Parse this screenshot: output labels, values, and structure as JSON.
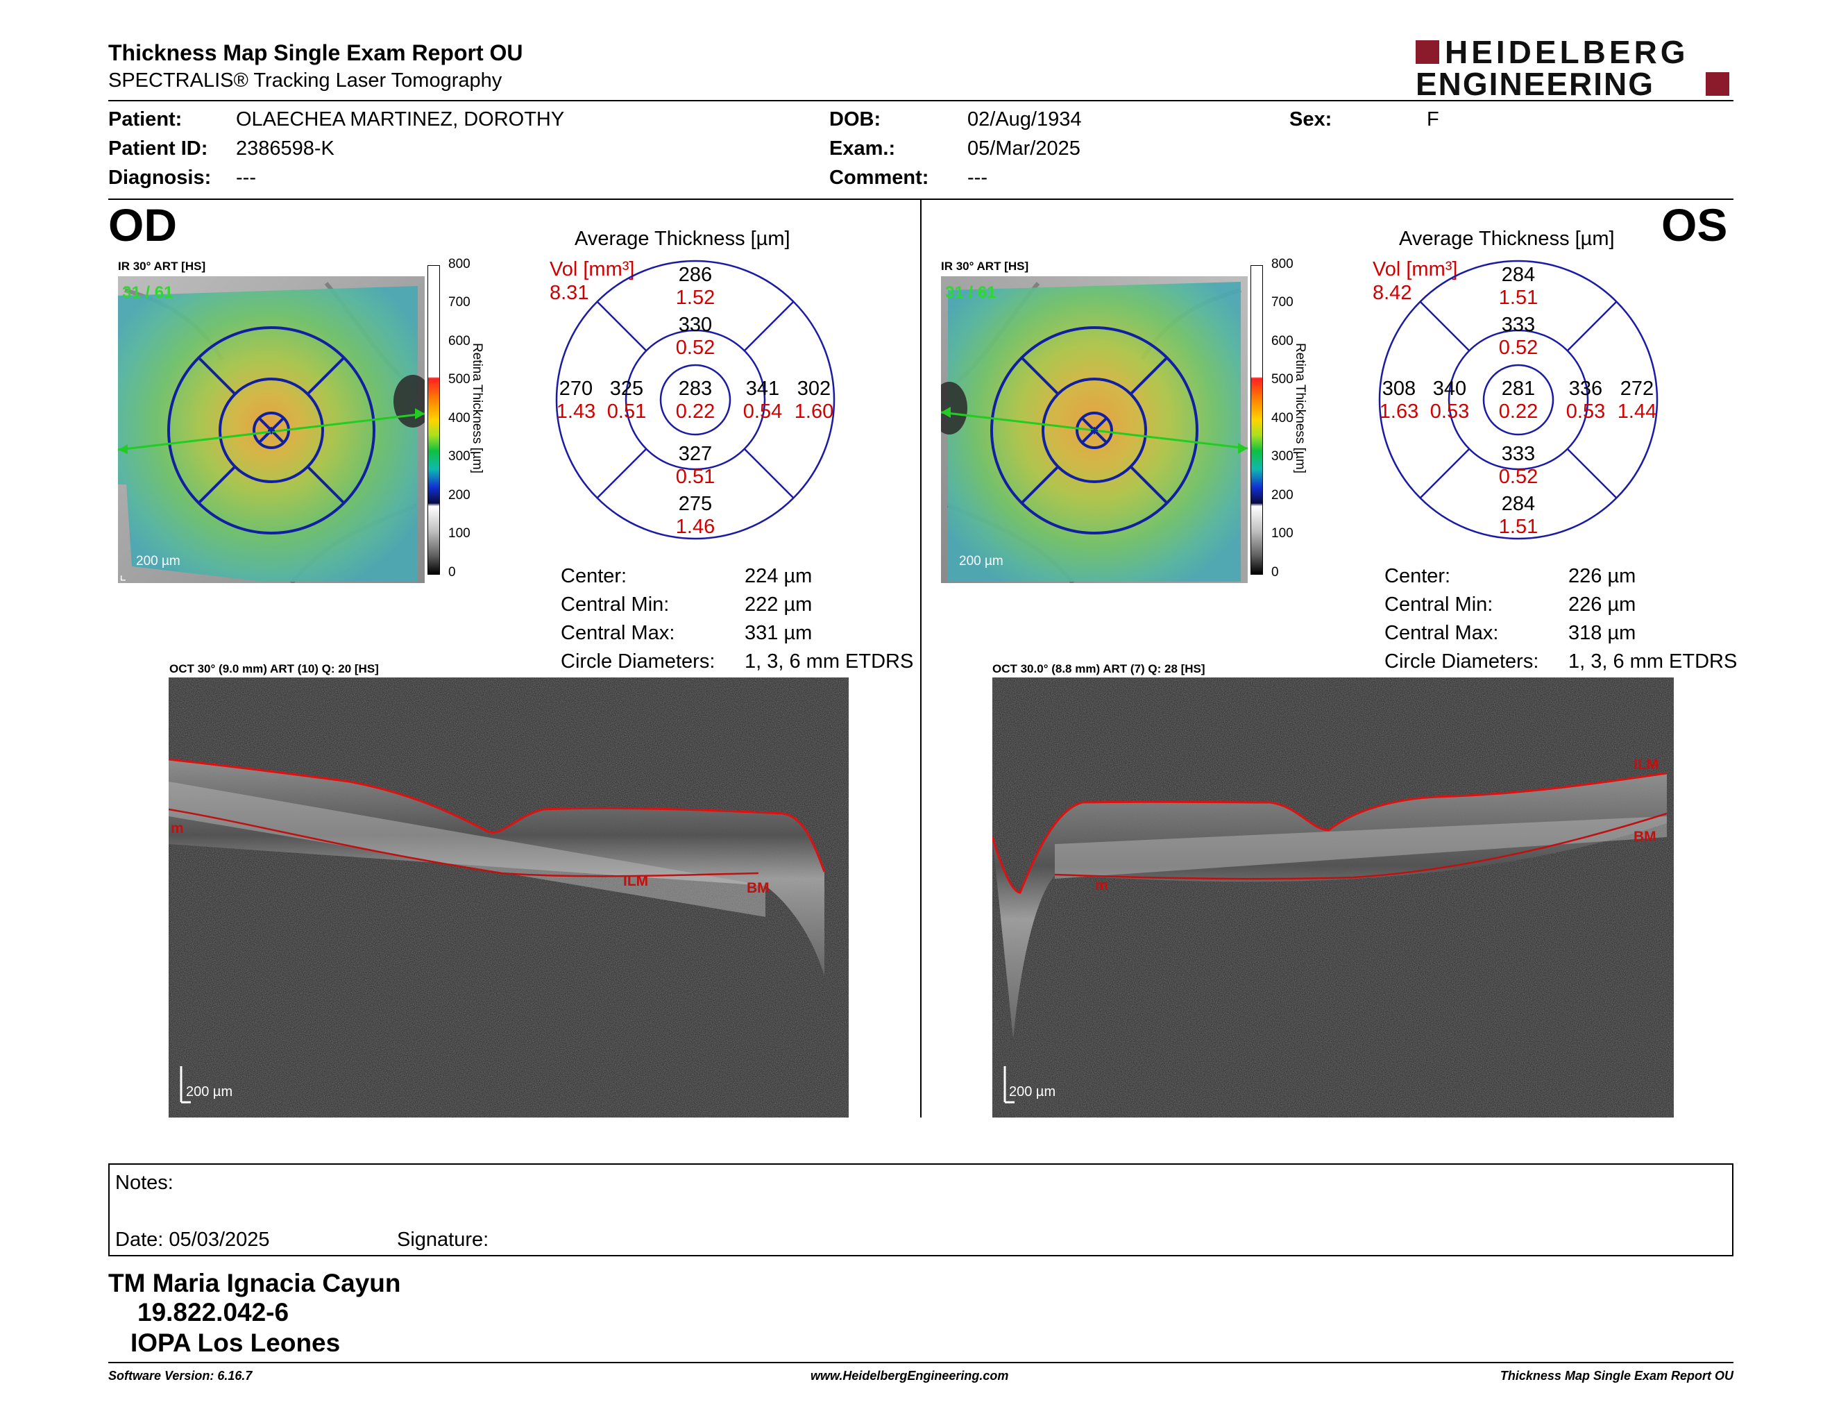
{
  "report": {
    "title": "Thickness Map Single Exam Report OU",
    "subtitle": "SPECTRALIS® Tracking Laser Tomography",
    "logo_line1": "HEIDELBERG",
    "logo_line2": "ENGINEERING",
    "brand_color": "#8b1a2b"
  },
  "patient": {
    "patient_label": "Patient:",
    "patient_value": "OLAECHEA MARTINEZ, DOROTHY",
    "id_label": "Patient ID:",
    "id_value": "2386598-K",
    "diag_label": "Diagnosis:",
    "diag_value": "---",
    "dob_label": "DOB:",
    "dob_value": "02/Aug/1934",
    "exam_label": "Exam.:",
    "exam_value": "05/Mar/2025",
    "comment_label": "Comment:",
    "comment_value": "---",
    "sex_label": "Sex:",
    "sex_value": "F"
  },
  "od": {
    "eye": "OD",
    "ir_label": "IR 30° ART [HS]",
    "frame_counter": "31 / 61",
    "scale_label": "200 µm",
    "avg_title": "Average Thickness [µm]",
    "vol_label": "Vol [mm³]",
    "vol_value": "8.31",
    "grid": {
      "center": [
        "283",
        "0.22"
      ],
      "inner_sup": [
        "330",
        "0.52"
      ],
      "inner_inf": [
        "327",
        "0.51"
      ],
      "inner_left": [
        "325",
        "0.51"
      ],
      "inner_right": [
        "341",
        "0.54"
      ],
      "outer_sup": [
        "286",
        "1.52"
      ],
      "outer_inf": [
        "275",
        "1.46"
      ],
      "outer_left": [
        "270",
        "1.43"
      ],
      "outer_right": [
        "302",
        "1.60"
      ]
    },
    "stats": {
      "center_label": "Center:",
      "center_value": "224 µm",
      "min_label": "Central Min:",
      "min_value": "222 µm",
      "max_label": "Central Max:",
      "max_value": "331 µm",
      "diam_label": "Circle Diameters:",
      "diam_value": "1, 3, 6 mm ETDRS"
    },
    "oct_label": "OCT 30° (9.0 mm) ART (10) Q: 20 [HS]",
    "oct_scale": "200 µm",
    "oct_marks": {
      "ilm": "ILM",
      "bm": "BM",
      "m": "m"
    }
  },
  "os": {
    "eye": "OS",
    "ir_label": "IR 30° ART [HS]",
    "frame_counter": "31 / 61",
    "scale_label": "200 µm",
    "avg_title": "Average Thickness [µm]",
    "vol_label": "Vol [mm³]",
    "vol_value": "8.42",
    "grid": {
      "center": [
        "281",
        "0.22"
      ],
      "inner_sup": [
        "333",
        "0.52"
      ],
      "inner_inf": [
        "333",
        "0.52"
      ],
      "inner_left": [
        "340",
        "0.53"
      ],
      "inner_right": [
        "336",
        "0.53"
      ],
      "outer_sup": [
        "284",
        "1.51"
      ],
      "outer_inf": [
        "284",
        "1.51"
      ],
      "outer_left": [
        "308",
        "1.63"
      ],
      "outer_right": [
        "272",
        "1.44"
      ]
    },
    "stats": {
      "center_label": "Center:",
      "center_value": "226 µm",
      "min_label": "Central Min:",
      "min_value": "226 µm",
      "max_label": "Central Max:",
      "max_value": "318 µm",
      "diam_label": "Circle Diameters:",
      "diam_value": "1, 3, 6 mm ETDRS"
    },
    "oct_label": "OCT 30.0° (8.8 mm) ART (7) Q: 28 [HS]",
    "oct_scale": "200 µm",
    "oct_marks": {
      "ilm": "ILM",
      "bm": "BM",
      "m": "m"
    }
  },
  "colorbar": {
    "ticks": [
      "800",
      "700",
      "600",
      "500",
      "400",
      "300",
      "200",
      "100",
      "0"
    ],
    "axis_label": "Retina Thickness [µm]"
  },
  "notes": {
    "notes_label": "Notes:",
    "date_label": "Date: 05/03/2025",
    "signature_label": "Signature:"
  },
  "signer": {
    "name": "TM Maria Ignacia Cayun",
    "rut": "19.822.042-6",
    "institution": "IOPA Los Leones"
  },
  "footer": {
    "software": "Software Version: 6.16.7",
    "website": "www.HeidelbergEngineering.com",
    "report_name": "Thickness Map Single Exam Report OU"
  }
}
